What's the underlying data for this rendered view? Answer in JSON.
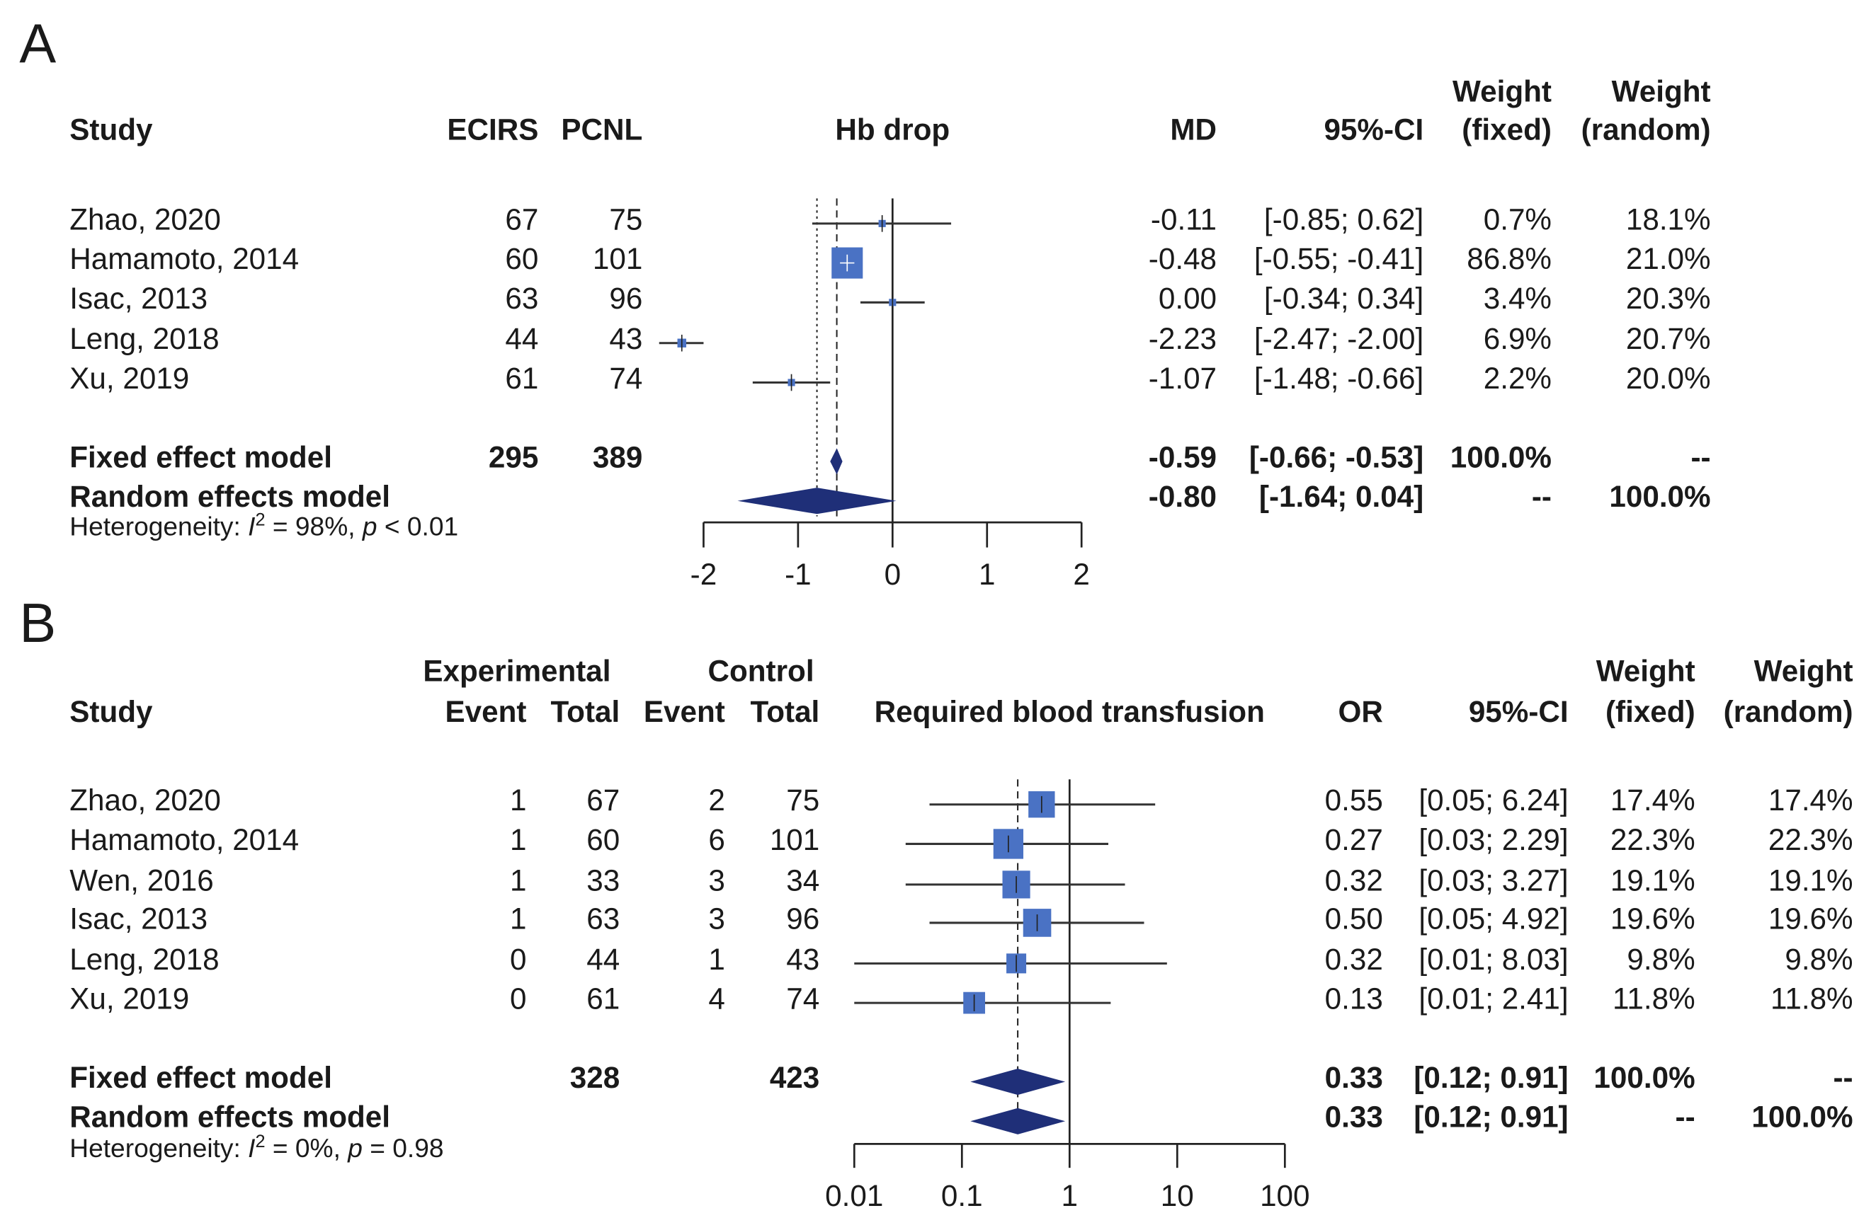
{
  "chart_data": [
    {
      "type": "forest",
      "panel_label": "A",
      "title": "Hb drop",
      "scale": "linear",
      "xlim": [
        -2,
        2
      ],
      "ticks": [
        -2,
        -1,
        0,
        1,
        2
      ],
      "tick_labels": [
        "-2",
        "-1",
        "0",
        "1",
        "2"
      ],
      "headers": {
        "study": "Study",
        "n1": "ECIRS",
        "n2": "PCNL",
        "effect": "MD",
        "ci": "95%-CI",
        "weight_top": "Weight",
        "wf": "(fixed)",
        "wr": "(random)"
      },
      "studies": [
        {
          "name": "Zhao, 2020",
          "n1": "67",
          "n2": "75",
          "est": -0.11,
          "lo": -0.85,
          "hi": 0.62,
          "est_label": "-0.11",
          "ci_label": "[-0.85;  0.62]",
          "wf": 0.7,
          "wf_label": "0.7%",
          "wr_label": "18.1%"
        },
        {
          "name": "Hamamoto, 2014",
          "n1": "60",
          "n2": "101",
          "est": -0.48,
          "lo": -0.55,
          "hi": -0.41,
          "est_label": "-0.48",
          "ci_label": "[-0.55; -0.41]",
          "wf": 86.8,
          "wf_label": "86.8%",
          "wr_label": "21.0%"
        },
        {
          "name": "Isac, 2013",
          "n1": "63",
          "n2": "96",
          "est": 0.0,
          "lo": -0.34,
          "hi": 0.34,
          "est_label": "0.00",
          "ci_label": "[-0.34;  0.34]",
          "wf": 3.4,
          "wf_label": "3.4%",
          "wr_label": "20.3%"
        },
        {
          "name": "Leng, 2018",
          "n1": "44",
          "n2": "43",
          "est": -2.23,
          "lo": -2.47,
          "hi": -2.0,
          "est_label": "-2.23",
          "ci_label": "[-2.47; -2.00]",
          "wf": 6.9,
          "wf_label": "6.9%",
          "wr_label": "20.7%"
        },
        {
          "name": "Xu, 2019",
          "n1": "61",
          "n2": "74",
          "est": -1.07,
          "lo": -1.48,
          "hi": -0.66,
          "est_label": "-1.07",
          "ci_label": "[-1.48; -0.66]",
          "wf": 2.2,
          "wf_label": "2.2%",
          "wr_label": "20.0%"
        }
      ],
      "fixed": {
        "name": "Fixed effect model",
        "n1": "295",
        "n2": "389",
        "est": -0.59,
        "lo": -0.66,
        "hi": -0.53,
        "est_label": "-0.59",
        "ci_label": "[-0.66; -0.53]",
        "wf_label": "100.0%",
        "wr_label": "--"
      },
      "random": {
        "name": "Random effects model",
        "est": -0.8,
        "lo": -1.64,
        "hi": 0.04,
        "est_label": "-0.80",
        "ci_label": "[-1.64;  0.04]",
        "wf_label": "--",
        "wr_label": "100.0%"
      },
      "heterogeneity": {
        "prefix": "Heterogeneity: ",
        "i": "I",
        "sup": "2",
        "mid": " = 98%, ",
        "p": "p",
        "suffix": " < 0.01"
      }
    },
    {
      "type": "forest",
      "panel_label": "B",
      "title": "Required blood transfusion",
      "scale": "log",
      "xlim": [
        0.01,
        100
      ],
      "ticks": [
        0.01,
        0.1,
        1,
        10,
        100
      ],
      "tick_labels": [
        "0.01",
        "0.1",
        "1",
        "10",
        "100"
      ],
      "headers": {
        "study": "Study",
        "group1": "Experimental",
        "group2": "Control",
        "e1": "Event",
        "n1": "Total",
        "e2": "Event",
        "n2": "Total",
        "effect": "OR",
        "ci": "95%-CI",
        "weight_top": "Weight",
        "wf": "(fixed)",
        "wr": "(random)"
      },
      "studies": [
        {
          "name": "Zhao, 2020",
          "e1": "1",
          "n1": "67",
          "e2": "2",
          "n2": "75",
          "est": 0.55,
          "lo": 0.05,
          "hi": 6.24,
          "est_label": "0.55",
          "ci_label": "[0.05; 6.24]",
          "wf": 17.4,
          "wf_label": "17.4%",
          "wr_label": "17.4%"
        },
        {
          "name": "Hamamoto, 2014",
          "e1": "1",
          "n1": "60",
          "e2": "6",
          "n2": "101",
          "est": 0.27,
          "lo": 0.03,
          "hi": 2.29,
          "est_label": "0.27",
          "ci_label": "[0.03; 2.29]",
          "wf": 22.3,
          "wf_label": "22.3%",
          "wr_label": "22.3%"
        },
        {
          "name": "Wen, 2016",
          "e1": "1",
          "n1": "33",
          "e2": "3",
          "n2": "34",
          "est": 0.32,
          "lo": 0.03,
          "hi": 3.27,
          "est_label": "0.32",
          "ci_label": "[0.03; 3.27]",
          "wf": 19.1,
          "wf_label": "19.1%",
          "wr_label": "19.1%"
        },
        {
          "name": "Isac, 2013",
          "e1": "1",
          "n1": "63",
          "e2": "3",
          "n2": "96",
          "est": 0.5,
          "lo": 0.05,
          "hi": 4.92,
          "est_label": "0.50",
          "ci_label": "[0.05; 4.92]",
          "wf": 19.6,
          "wf_label": "19.6%",
          "wr_label": "19.6%"
        },
        {
          "name": "Leng, 2018",
          "e1": "0",
          "n1": "44",
          "e2": "1",
          "n2": "43",
          "est": 0.32,
          "lo": 0.01,
          "hi": 8.03,
          "est_label": "0.32",
          "ci_label": "[0.01; 8.03]",
          "wf": 9.8,
          "wf_label": "9.8%",
          "wr_label": "9.8%"
        },
        {
          "name": "Xu, 2019",
          "e1": "0",
          "n1": "61",
          "e2": "4",
          "n2": "74",
          "est": 0.13,
          "lo": 0.01,
          "hi": 2.41,
          "est_label": "0.13",
          "ci_label": "[0.01; 2.41]",
          "wf": 11.8,
          "wf_label": "11.8%",
          "wr_label": "11.8%"
        }
      ],
      "fixed": {
        "name": "Fixed effect model",
        "n1": "328",
        "n2": "423",
        "est": 0.33,
        "lo": 0.12,
        "hi": 0.91,
        "est_label": "0.33",
        "ci_label": "[0.12; 0.91]",
        "wf_label": "100.0%",
        "wr_label": "--"
      },
      "random": {
        "name": "Random effects model",
        "est": 0.33,
        "lo": 0.12,
        "hi": 0.91,
        "est_label": "0.33",
        "ci_label": "[0.12; 0.91]",
        "wf_label": "--",
        "wr_label": "100.0%"
      },
      "heterogeneity": {
        "prefix": "Heterogeneity: ",
        "i": "I",
        "sup": "2",
        "mid": " = 0%, ",
        "p": "p",
        "suffix": " = 0.98"
      }
    }
  ],
  "colors": {
    "square": "#4a72c4",
    "diamond": "#1f2f78",
    "line": "#222222"
  }
}
